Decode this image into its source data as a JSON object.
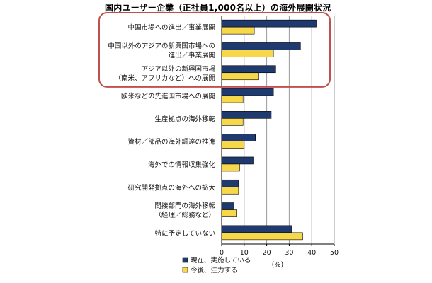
{
  "chart_data": {
    "type": "bar",
    "orientation": "horizontal",
    "title": "国内ユーザー企業（正社員1,000名以上）の海外展開状況",
    "categories": [
      [
        "中国市場への進出／事業展開"
      ],
      [
        "中国以外のアジアの新興国市場への",
        "進出／事業展開"
      ],
      [
        "アジア以外の新興国市場",
        "（南米、アフリカなど）への展開"
      ],
      [
        "欧米などの先進国市場への展開"
      ],
      [
        "生産拠点の海外移転"
      ],
      [
        "資材／部品の海外調達の推進"
      ],
      [
        "海外での情報収集強化"
      ],
      [
        "研究開発拠点の海外への拡大"
      ],
      [
        "間接部門の海外移転",
        "（経理／総務など）"
      ],
      [
        "特に予定していない"
      ]
    ],
    "series": [
      {
        "name": "現在、実施している",
        "color": "#1f3a6e",
        "values": [
          42,
          35,
          24,
          23,
          22,
          15,
          14,
          7.5,
          5.5,
          31
        ]
      },
      {
        "name": "今後、注力する",
        "color": "#f7d84a",
        "values": [
          14.5,
          23,
          16.5,
          9.5,
          9.5,
          10,
          8,
          7.5,
          6.5,
          36
        ]
      }
    ],
    "xlim": [
      0,
      50
    ],
    "xticks": [
      0,
      10,
      20,
      30,
      40,
      50
    ],
    "xlabel": "(%)",
    "grid": "vertical",
    "legend": "bottom-left",
    "highlight": {
      "categories": [
        0,
        1,
        2
      ],
      "color": "#c0504d"
    }
  }
}
